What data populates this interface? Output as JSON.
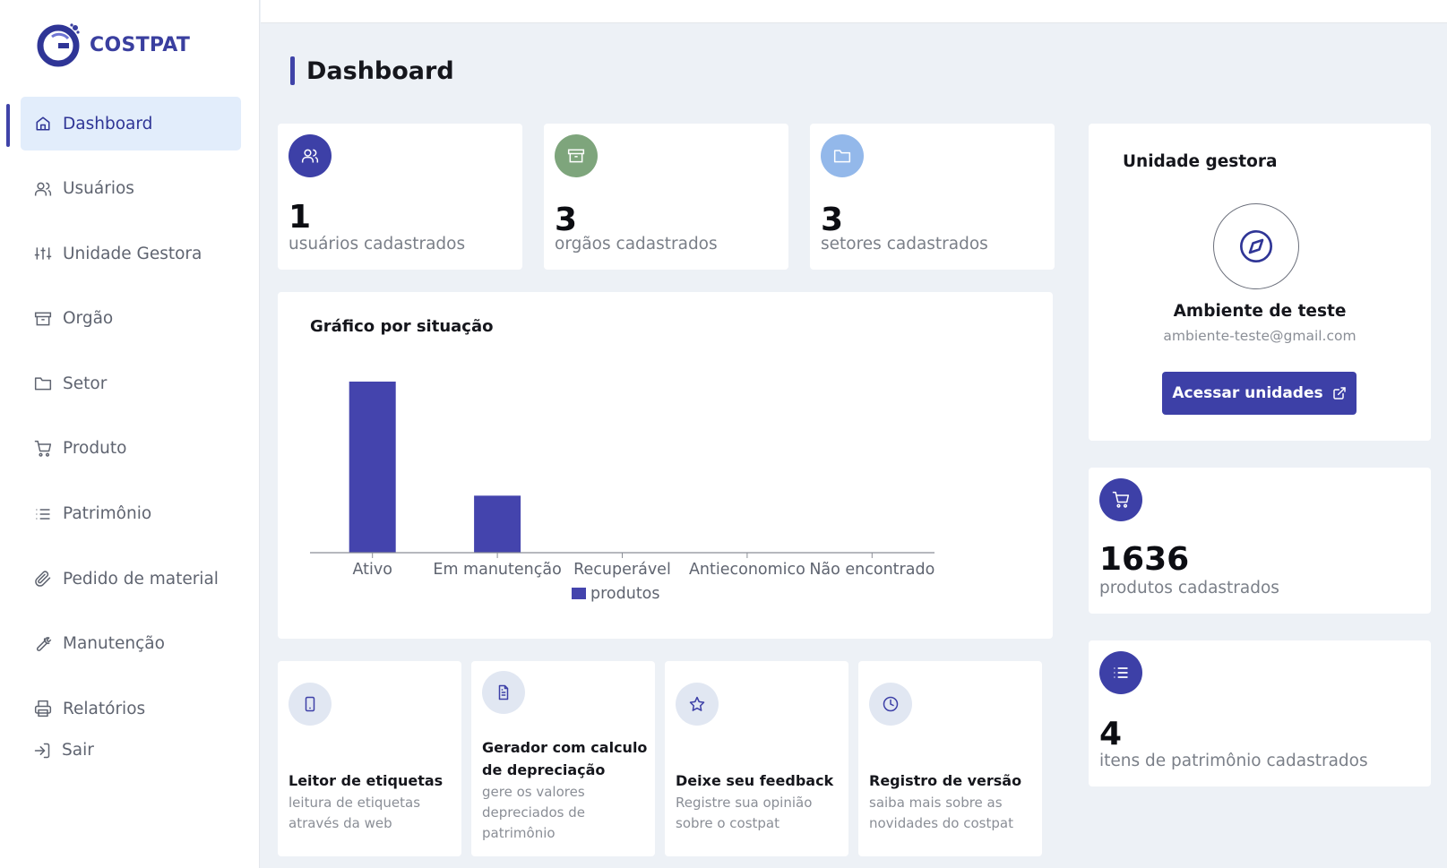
{
  "brand": {
    "name": "COSTPAT"
  },
  "sidebar": {
    "items": [
      {
        "label": "Dashboard",
        "icon": "home-icon",
        "active": true
      },
      {
        "label": "Usuários",
        "icon": "users-icon"
      },
      {
        "label": "Unidade Gestora",
        "icon": "sliders-icon"
      },
      {
        "label": "Orgão",
        "icon": "archive-icon"
      },
      {
        "label": "Setor",
        "icon": "folder-icon"
      },
      {
        "label": "Produto",
        "icon": "cart-icon"
      },
      {
        "label": "Patrimônio",
        "icon": "list-icon"
      },
      {
        "label": "Pedido de material",
        "icon": "paperclip-icon"
      },
      {
        "label": "Manutenção",
        "icon": "wrench-icon"
      },
      {
        "label": "Relatórios",
        "icon": "printer-icon"
      }
    ],
    "logout": {
      "label": "Sair",
      "icon": "logout-icon"
    }
  },
  "page": {
    "title": "Dashboard"
  },
  "stats": [
    {
      "value": "1",
      "label": "usuários cadastrados",
      "icon": "users-icon",
      "color": "#3d40a7"
    },
    {
      "value": "3",
      "label": "orgãos cadastrados",
      "icon": "archive-icon",
      "color": "#7ea57c"
    },
    {
      "value": "3",
      "label": "setores cadastrados",
      "icon": "folder-icon",
      "color": "#93b8ea"
    }
  ],
  "right_stats": [
    {
      "value": "1636",
      "label": "produtos cadastrados",
      "icon": "cart-icon",
      "color": "#3d40a7"
    },
    {
      "value": "4",
      "label": "itens de patrimônio cadastrados",
      "icon": "list-icon",
      "color": "#3d40a7"
    }
  ],
  "chart_data": {
    "type": "bar",
    "title": "Gráfico por situação",
    "categories": [
      "Ativo",
      "Em manutenção",
      "Recuperável",
      "Antieconomico",
      "Não encontrado"
    ],
    "series": [
      {
        "name": "produtos",
        "values": [
          3,
          1,
          0,
          0,
          0
        ],
        "color": "#4444ad"
      }
    ],
    "ylim": [
      0,
      3
    ],
    "legend": "bottom",
    "grid": false
  },
  "features": [
    {
      "title": "Leitor de etiquetas",
      "desc": "leitura de etiquetas através da web",
      "icon": "smartphone-icon"
    },
    {
      "title": "Gerador com calculo de depreciação",
      "desc": "gere os valores depreciados de patrimônio",
      "icon": "document-icon"
    },
    {
      "title": "Deixe seu feedback",
      "desc": "Registre sua opinião sobre o costpat",
      "icon": "star-icon"
    },
    {
      "title": "Registro de versão",
      "desc": "saiba mais sobre as novidades do costpat",
      "icon": "clock-icon"
    }
  ],
  "unidade": {
    "title": "Unidade gestora",
    "name": "Ambiente de teste",
    "email": "ambiente-teste@gmail.com",
    "button": "Acessar unidades",
    "icon": "compass-icon"
  }
}
